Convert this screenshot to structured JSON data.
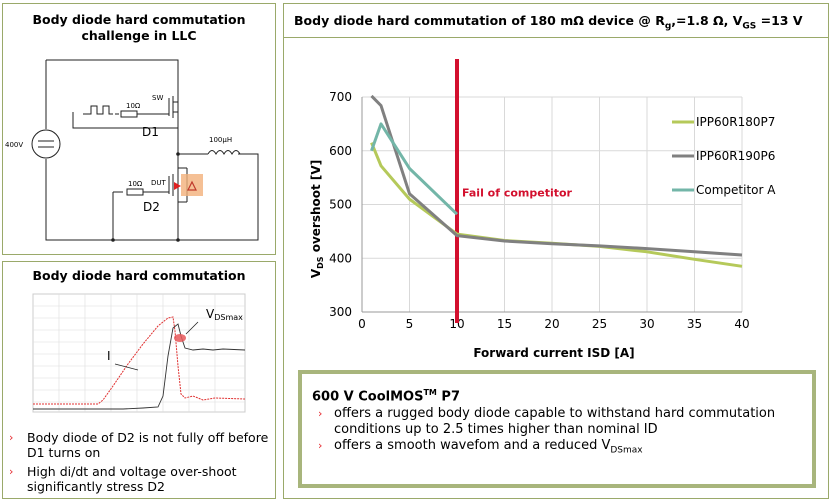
{
  "llc_panel": {
    "title": "Body diode hard commutation challenge in LLC",
    "labels": {
      "sw": "SW",
      "r1": "10Ω",
      "d1": "D1",
      "r2": "10Ω",
      "d2": "D2",
      "dut": "DUT",
      "inductor": "100µH",
      "source": "400V"
    }
  },
  "waveform_panel": {
    "title": "Body diode hard commutation",
    "label_i": "I",
    "label_v": "V",
    "label_v_sub": "DSmax",
    "bullets": [
      "Body diode of D2 is not fully off before D1 turns on",
      "High di/dt and voltage over-shoot significantly stress D2"
    ]
  },
  "chart_panel": {
    "title_main": "Body diode hard commutation of 180 mΩ device @ R",
    "title_sub_g": "g",
    "title_mid": ",=1.8 Ω, V",
    "title_sub_gs": "GS",
    "title_end": " =13 V",
    "fail_label": "Fail of competitor",
    "ylabel_v": "V",
    "ylabel_sub": "DS",
    "ylabel_rest": " overshoot  [V]",
    "callout": {
      "title": "600 V CoolMOS",
      "title_sup": "TM",
      "title_end": " P7",
      "b1": "offers a rugged body diode capable to withstand hard commutation conditions up to 2.5 times higher than nominal ID",
      "b2": "offers a smooth wavefom and a reduced V",
      "b2_sub": "DSmax"
    }
  },
  "colors": {
    "p7": "#b5c95a",
    "p6": "#808080",
    "competitor": "#73b6a8",
    "fail": "#d3102e",
    "panel_border": "#9aa96a",
    "bullet": "#e5282e"
  },
  "chart_data": {
    "type": "line",
    "title": "Body diode hard commutation of 180 mΩ device @ Rg,=1.8 Ω, VGS =13 V",
    "xlabel": "Forward current ISD [A]",
    "ylabel": "VDS overshoot [V]",
    "xlim": [
      0,
      40
    ],
    "ylim": [
      300,
      700
    ],
    "xticks": [
      0,
      5,
      10,
      15,
      20,
      25,
      30,
      35,
      40
    ],
    "yticks": [
      300,
      400,
      500,
      600,
      700
    ],
    "grid": true,
    "legend": "right",
    "fail_marker_x": 10,
    "series": [
      {
        "name": "IPP60R180P7",
        "color": "#b5c95a",
        "x": [
          1,
          2,
          5,
          10,
          15,
          20,
          25,
          30,
          35,
          40
        ],
        "y": [
          615,
          572,
          510,
          445,
          433,
          428,
          422,
          412,
          398,
          385
        ]
      },
      {
        "name": "IPP60R190P6",
        "color": "#808080",
        "x": [
          1,
          2,
          5,
          10,
          15,
          20,
          25,
          30,
          35,
          40
        ],
        "y": [
          702,
          684,
          520,
          442,
          432,
          427,
          423,
          418,
          412,
          406
        ]
      },
      {
        "name": "Competitor A",
        "color": "#73b6a8",
        "x": [
          1,
          2,
          5,
          10
        ],
        "y": [
          600,
          650,
          567,
          482
        ]
      }
    ]
  }
}
